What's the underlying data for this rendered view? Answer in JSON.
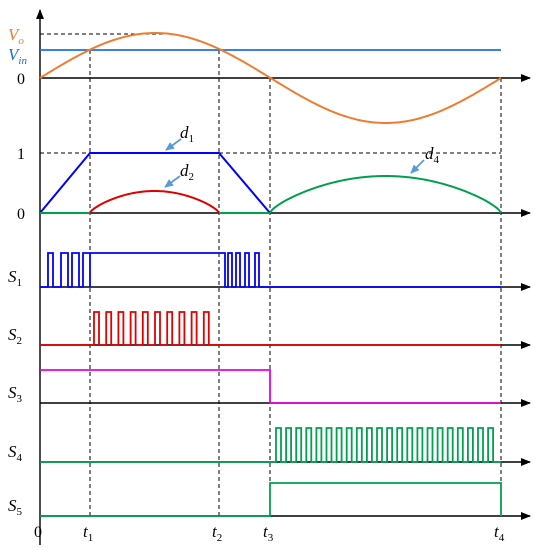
{
  "colors": {
    "orange": "#ED7D31",
    "blue": "#0000FF",
    "lightblue": "#1F6FE5",
    "red": "#E00000",
    "green": "#00A050",
    "magenta": "#E600E6",
    "black": "#000000",
    "arrow": "#5B9BD5"
  },
  "labels": {
    "vo_main": "V",
    "vo_sub": "o",
    "vin_main": "V",
    "vin_sub": "in",
    "zero_top": "0",
    "one": "1",
    "zero_duty": "0",
    "d1_main": "d",
    "d1_sub": "1",
    "d2_main": "d",
    "d2_sub": "2",
    "d4_main": "d",
    "d4_sub": "4",
    "s1_main": "S",
    "s1_sub": "1",
    "s2_main": "S",
    "s2_sub": "2",
    "s3_main": "S",
    "s3_sub": "3",
    "s4_main": "S",
    "s4_sub": "4",
    "s5_main": "S",
    "s5_sub": "5",
    "t0": "0",
    "t1_main": "t",
    "t1_sub": "1",
    "t2_main": "t",
    "t2_sub": "2",
    "t3_main": "t",
    "t3_sub": "3",
    "t4_main": "t",
    "t4_sub": "4"
  }
}
